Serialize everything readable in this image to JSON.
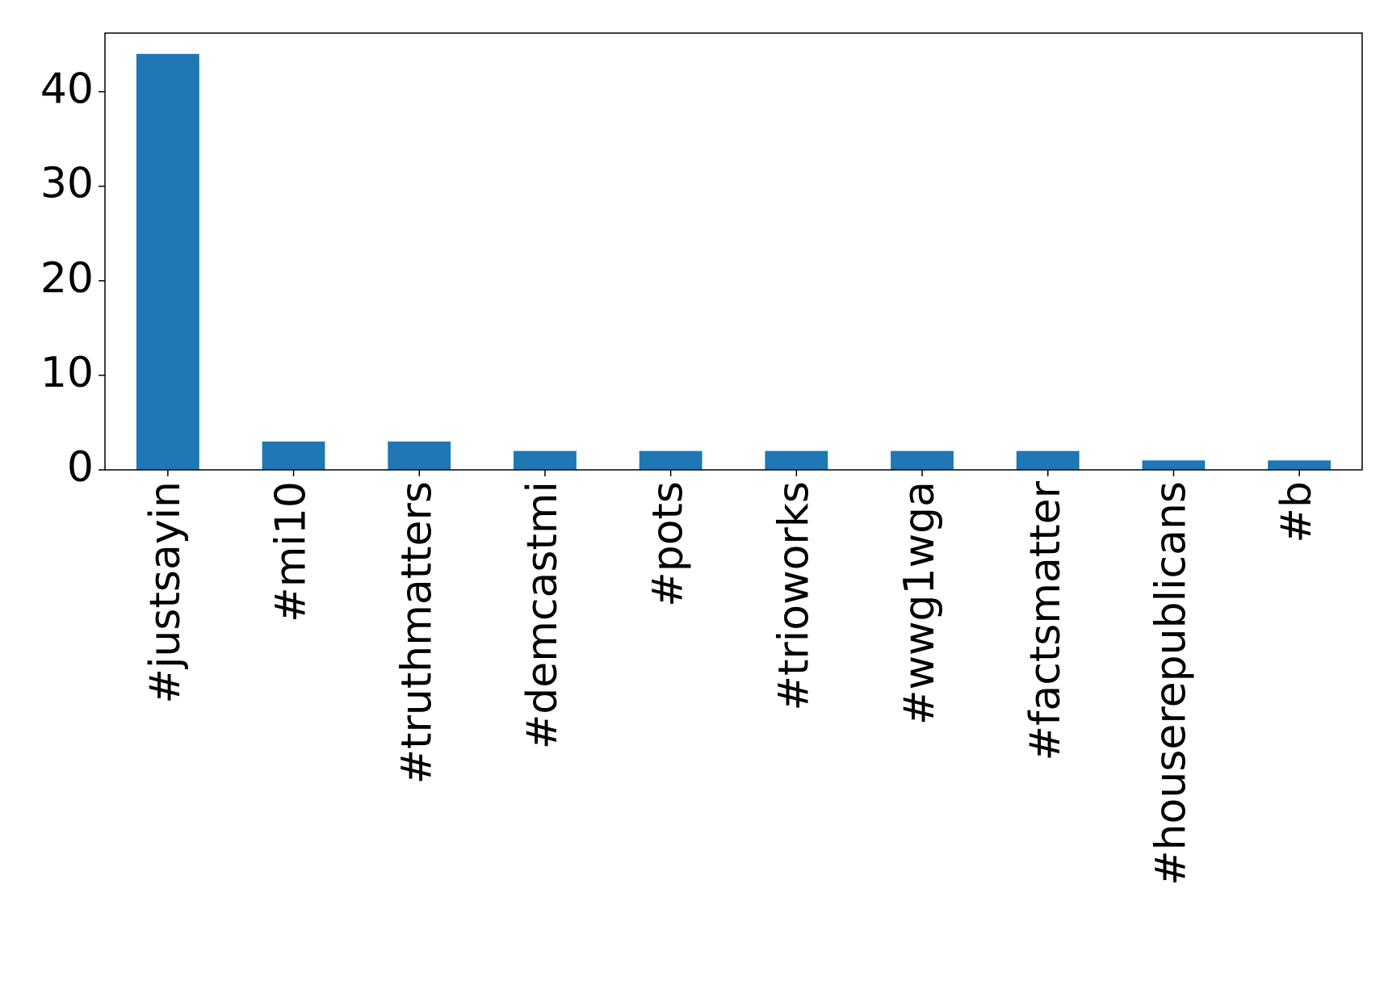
{
  "chart_data": {
    "type": "bar",
    "categories": [
      "#justsayin",
      "#mi10",
      "#truthmatters",
      "#demcastmi",
      "#pots",
      "#trioworks",
      "#wwg1wga",
      "#factsmatter",
      "#houserepublicans",
      "#b"
    ],
    "values": [
      44,
      3,
      3,
      2,
      2,
      2,
      2,
      2,
      1,
      1
    ],
    "color": "#1f77b4",
    "ylim": [
      0,
      46.2
    ],
    "yticks": [
      0,
      10,
      20,
      30,
      40
    ],
    "grid": false
  }
}
